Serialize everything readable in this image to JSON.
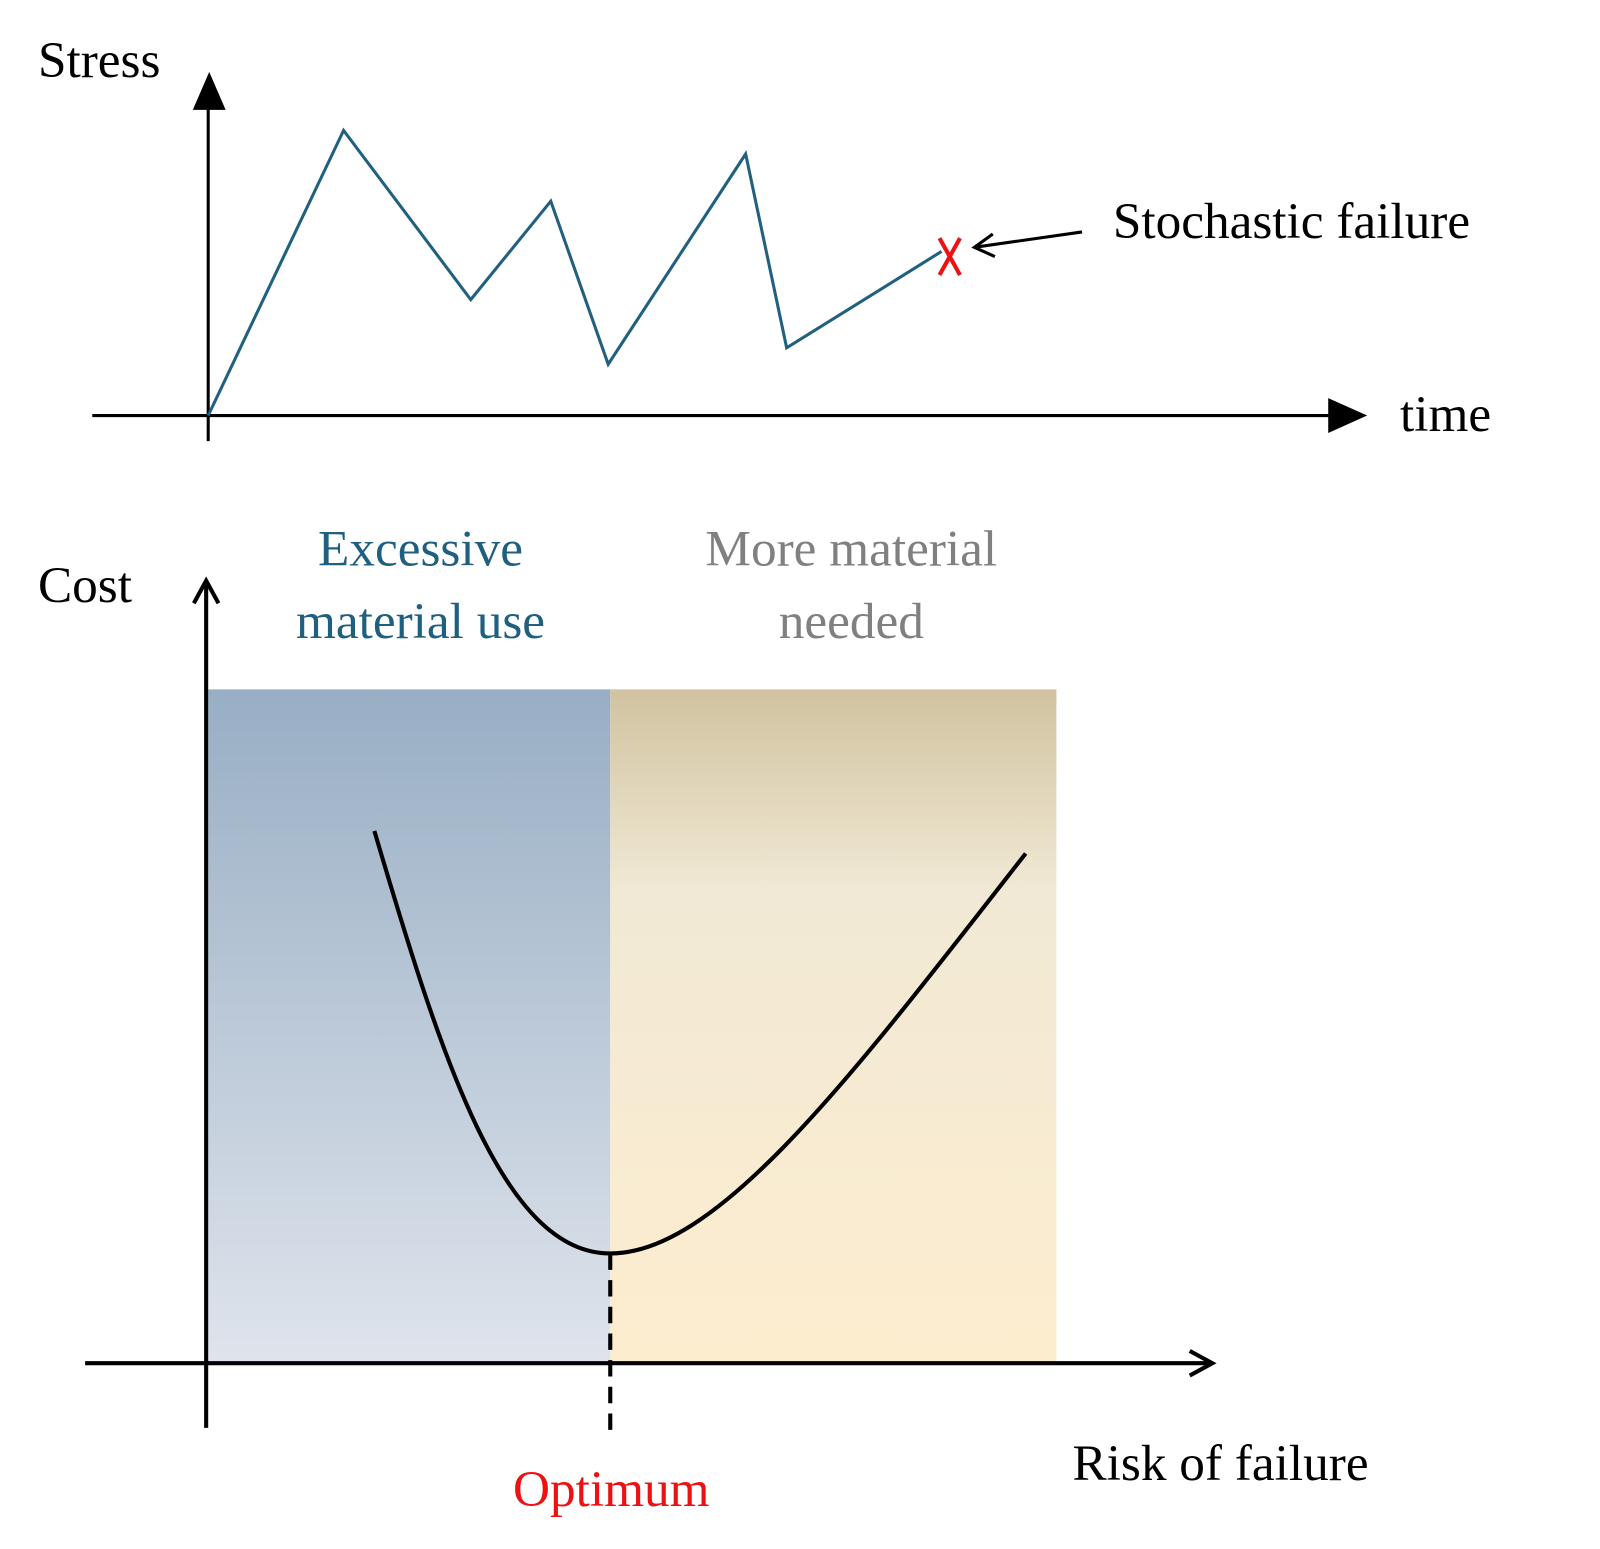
{
  "top_diagram": {
    "y_axis_label": "Stress",
    "x_axis_label": "time",
    "annotation": "Stochastic failure"
  },
  "bottom_diagram": {
    "y_axis_label": "Cost",
    "x_axis_label": "Risk of failure",
    "left_region_label": [
      "Excessive",
      "material use"
    ],
    "right_region_label": [
      "More material",
      "needed"
    ],
    "optimum_label": "Optimum"
  }
}
